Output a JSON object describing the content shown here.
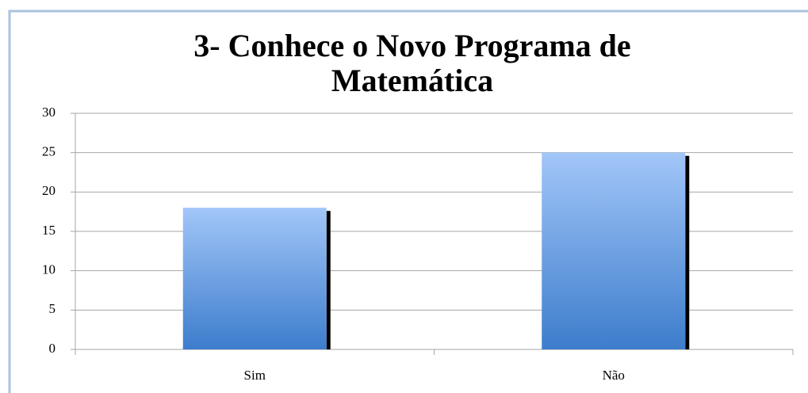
{
  "chart_data": {
    "type": "bar",
    "title": "3- Conhece o Novo Programa de Matemática",
    "categories": [
      "Sim",
      "Não"
    ],
    "values": [
      18,
      25
    ],
    "color": "#5b8fd9",
    "ylim": [
      0,
      30
    ],
    "yticks": [
      0,
      5,
      10,
      15,
      20,
      25,
      30
    ],
    "grid": true
  }
}
